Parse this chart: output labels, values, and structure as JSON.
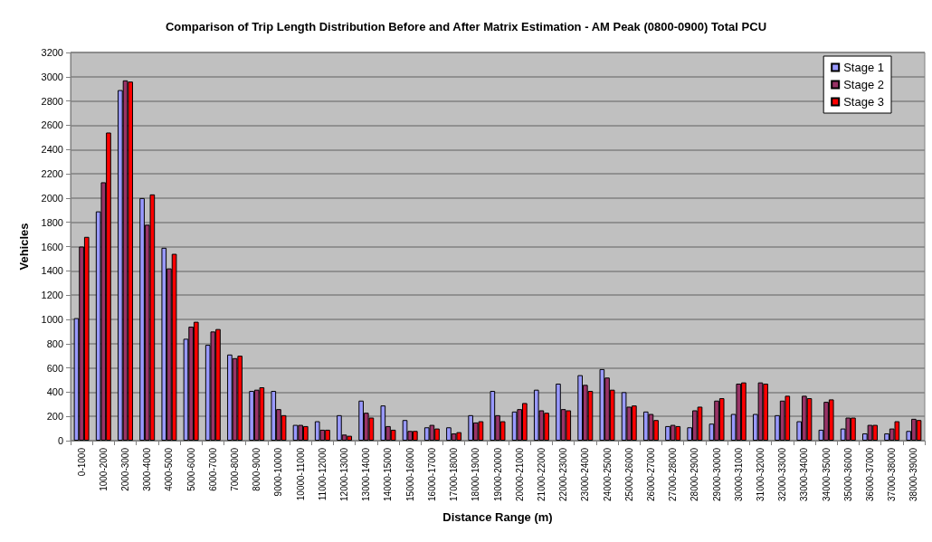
{
  "chart_data": {
    "type": "bar",
    "title": "Comparison of Trip Length Distribution Before and After Matrix Estimation - AM Peak (0800-0900) Total PCU",
    "xlabel": "Distance Range (m)",
    "ylabel": "Vehicles",
    "categories": [
      "0-1000",
      "1000-2000",
      "2000-3000",
      "3000-4000",
      "4000-5000",
      "5000-6000",
      "6000-7000",
      "7000-8000",
      "8000-9000",
      "9000-10000",
      "10000-11000",
      "11000-12000",
      "12000-13000",
      "13000-14000",
      "14000-15000",
      "15000-16000",
      "16000-17000",
      "17000-18000",
      "18000-19000",
      "19000-20000",
      "20000-21000",
      "21000-22000",
      "22000-23000",
      "23000-24000",
      "24000-25000",
      "25000-26000",
      "26000-27000",
      "27000-28000",
      "28000-29000",
      "29000-30000",
      "30000-31000",
      "31000-32000",
      "32000-33000",
      "33000-34000",
      "34000-35000",
      "35000-36000",
      "36000-37000",
      "37000-38000",
      "38000-39000"
    ],
    "series": [
      {
        "name": "Stage 1",
        "color": "#9999ff",
        "values": [
          1010,
          1890,
          2890,
          2000,
          1590,
          840,
          790,
          710,
          410,
          410,
          130,
          160,
          210,
          330,
          290,
          170,
          110,
          110,
          210,
          410,
          240,
          420,
          470,
          540,
          590,
          400,
          240,
          120,
          110,
          140,
          220,
          220,
          210,
          160,
          90,
          100,
          60,
          60,
          80
        ]
      },
      {
        "name": "Stage 2",
        "color": "#993366",
        "values": [
          1600,
          2130,
          2970,
          1780,
          1420,
          940,
          900,
          680,
          420,
          260,
          130,
          90,
          50,
          230,
          120,
          80,
          130,
          60,
          150,
          210,
          260,
          250,
          260,
          460,
          520,
          280,
          220,
          130,
          250,
          330,
          470,
          480,
          330,
          370,
          320,
          190,
          130,
          100,
          180
        ]
      },
      {
        "name": "Stage 3",
        "color": "#ff0000",
        "values": [
          1680,
          2540,
          2960,
          2030,
          1540,
          980,
          920,
          700,
          440,
          210,
          120,
          90,
          40,
          190,
          90,
          80,
          100,
          70,
          160,
          160,
          310,
          230,
          250,
          410,
          420,
          290,
          170,
          120,
          280,
          350,
          480,
          470,
          370,
          350,
          340,
          190,
          130,
          160,
          170
        ]
      }
    ],
    "ylim": [
      0,
      3200
    ],
    "yticks": [
      0,
      200,
      400,
      600,
      800,
      1000,
      1200,
      1400,
      1600,
      1800,
      2000,
      2200,
      2400,
      2600,
      2800,
      3000,
      3200
    ],
    "grid": "y",
    "legend": "top right"
  }
}
